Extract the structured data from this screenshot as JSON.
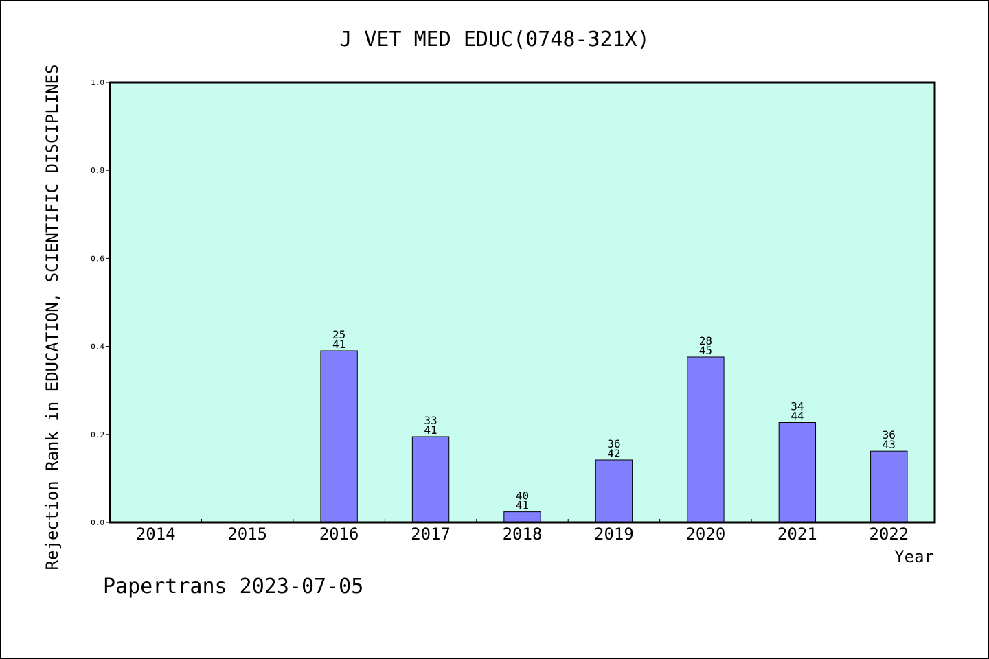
{
  "chart_data": {
    "type": "bar",
    "title": "J VET MED EDUC(0748-321X)",
    "xlabel": "Year",
    "ylabel": "Rejection Rank in EDUCATION, SCIENTIFIC DISCIPLINES",
    "ylim": [
      0,
      1.0
    ],
    "yticks": [
      "0.0",
      "0.2",
      "0.4",
      "0.6",
      "0.8",
      "1.0"
    ],
    "categories": [
      "2014",
      "2015",
      "2016",
      "2017",
      "2018",
      "2019",
      "2020",
      "2021",
      "2022"
    ],
    "values": [
      null,
      null,
      0.39,
      0.195,
      0.024,
      0.142,
      0.376,
      0.227,
      0.162
    ],
    "labels_top": [
      "",
      "",
      "25",
      "33",
      "40",
      "36",
      "28",
      "34",
      "36"
    ],
    "labels_bottom": [
      "",
      "",
      "41",
      "41",
      "41",
      "42",
      "45",
      "44",
      "43"
    ],
    "grid": false,
    "colors": {
      "plot_background": "#c8fcee",
      "bar_fill": "#8080ff",
      "bar_stroke": "#000000"
    }
  },
  "footer": "Papertrans 2023-07-05"
}
